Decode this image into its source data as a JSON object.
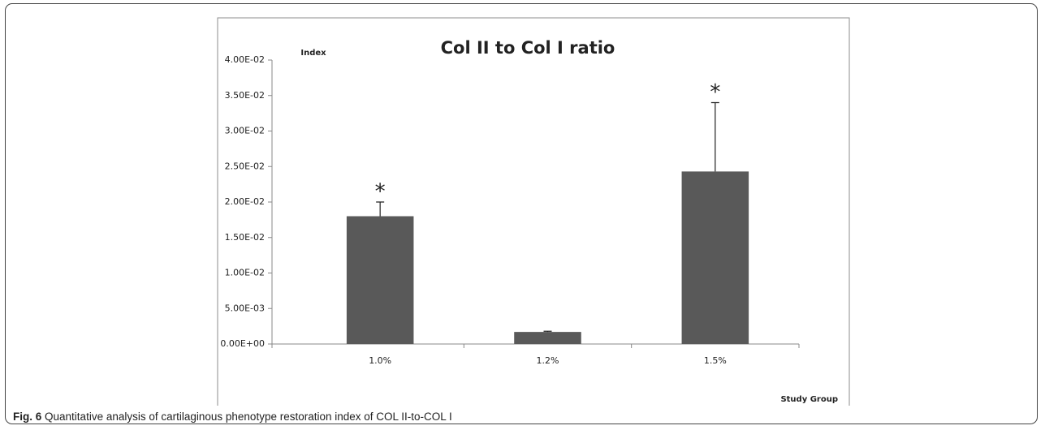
{
  "chart_data": {
    "type": "bar",
    "title": "Col II to Col I ratio",
    "y_label": "Index",
    "x_label": "Study Group",
    "categories": [
      "1.0%",
      "1.2%",
      "1.5%"
    ],
    "values": [
      0.018,
      0.0017,
      0.0243
    ],
    "errors": [
      0.002,
      0.0001,
      0.0097
    ],
    "color": "#595959",
    "ylim": [
      0,
      0.04
    ],
    "yticks": [
      {
        "value": 0,
        "label": "0.00E+00"
      },
      {
        "value": 0.005,
        "label": "5.00E-03"
      },
      {
        "value": 0.01,
        "label": "1.00E-02"
      },
      {
        "value": 0.015,
        "label": "1.50E-02"
      },
      {
        "value": 0.02,
        "label": "2.00E-02"
      },
      {
        "value": 0.025,
        "label": "2.50E-02"
      },
      {
        "value": 0.03,
        "label": "3.00E-02"
      },
      {
        "value": 0.035,
        "label": "3.50E-02"
      },
      {
        "value": 0.04,
        "label": "4.00E-02"
      }
    ],
    "annotations": [
      {
        "text": "*",
        "category": "1.0%"
      },
      {
        "text": "*",
        "category": "1.5%"
      }
    ],
    "grid": false
  },
  "caption": {
    "label": "Fig. 6",
    "text": "Quantitative analysis of cartilaginous phenotype restoration index of COL II-to-COL I"
  }
}
